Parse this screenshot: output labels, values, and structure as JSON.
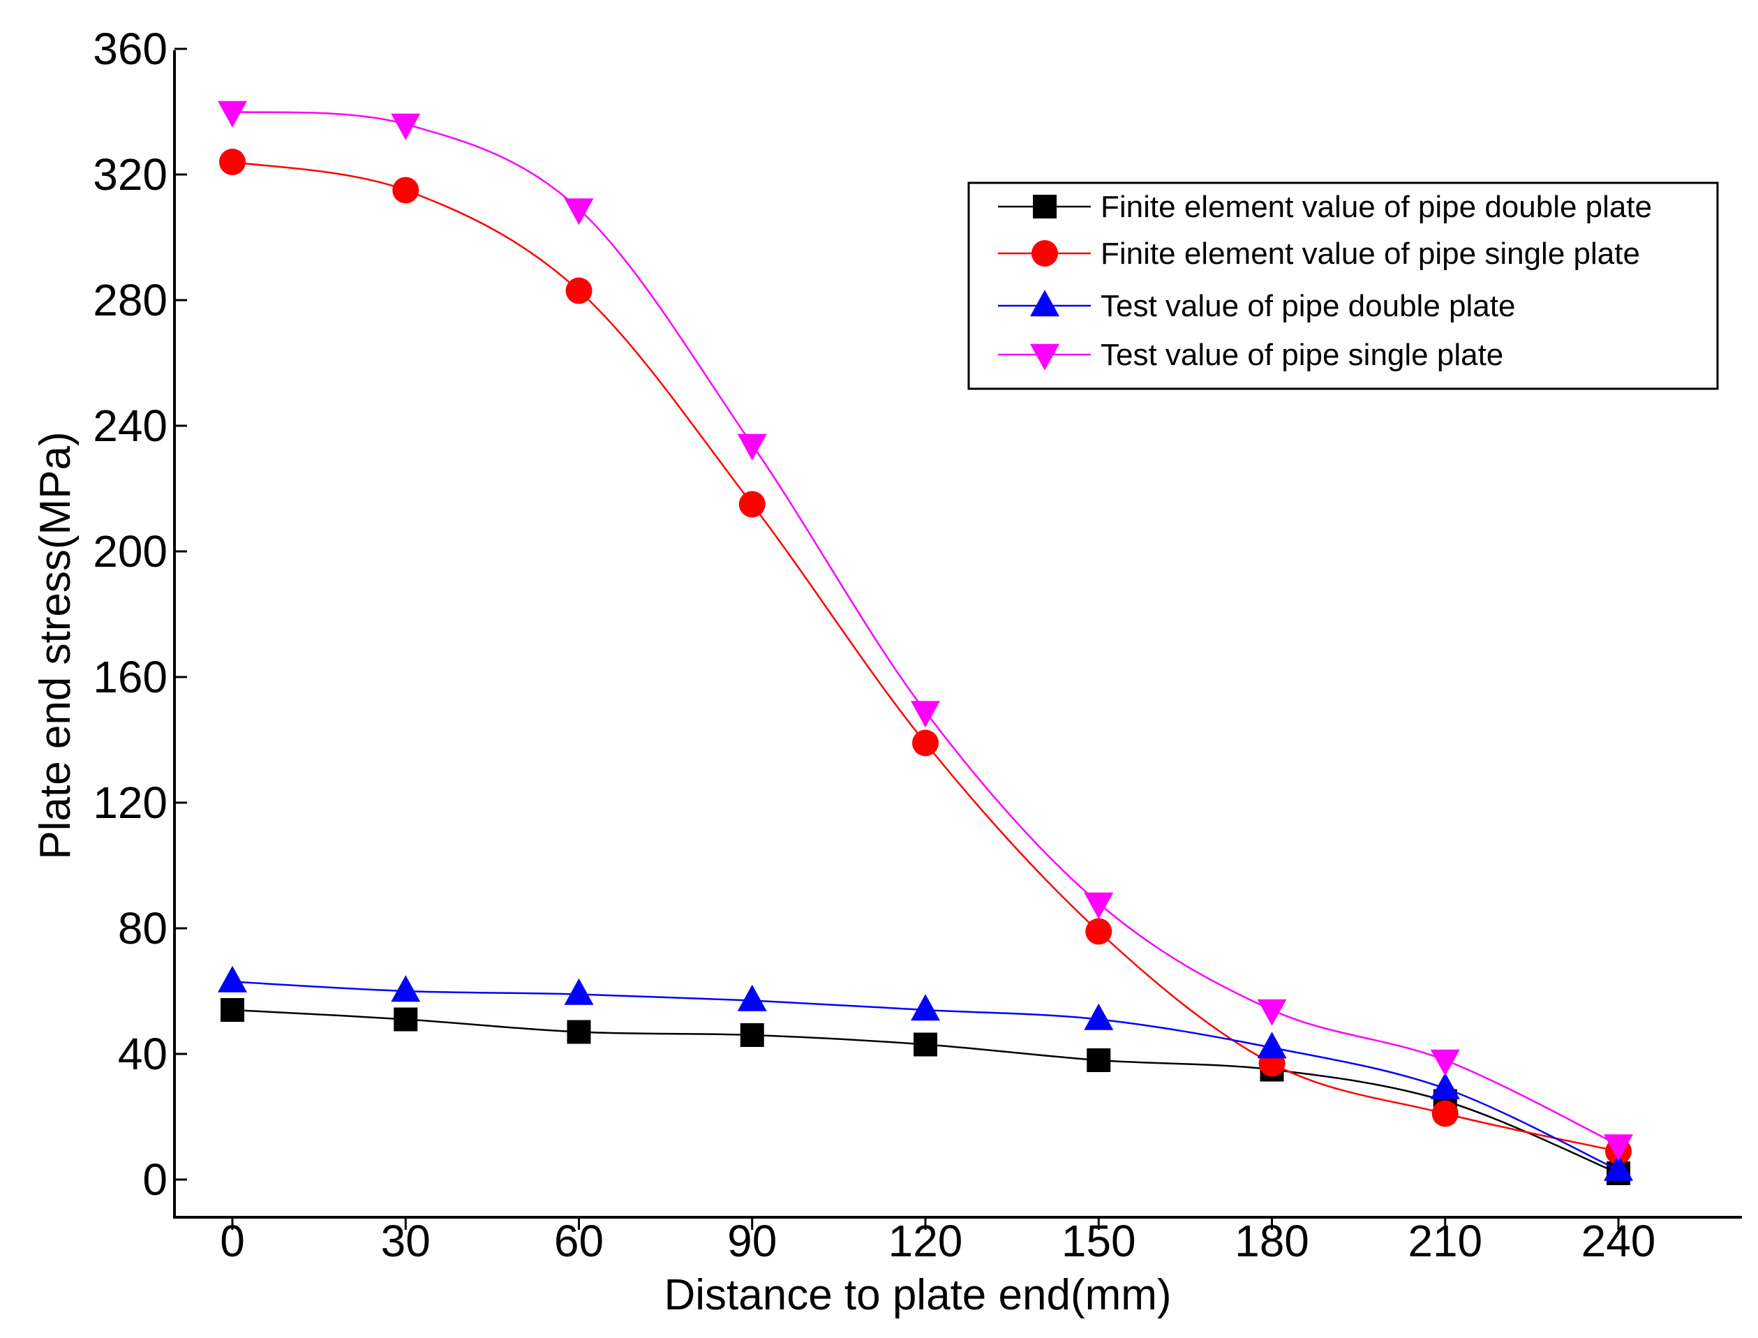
{
  "chart_data": {
    "type": "line",
    "title": "",
    "xlabel": "Distance to plate end(mm)",
    "ylabel": "Plate end stress(MPa)",
    "x": [
      0,
      30,
      60,
      90,
      120,
      150,
      180,
      210,
      240
    ],
    "x_ticks": [
      "0",
      "30",
      "60",
      "90",
      "120",
      "150",
      "180",
      "210",
      "240"
    ],
    "y_ticks": [
      "0",
      "40",
      "80",
      "120",
      "160",
      "200",
      "240",
      "280",
      "320",
      "360"
    ],
    "xlim": [
      -10,
      260
    ],
    "ylim": [
      -10,
      360
    ],
    "grid": false,
    "legend_position": "top-right",
    "series": [
      {
        "name": "Finite element value of pipe double plate",
        "marker": "square",
        "color": "#000000",
        "values": [
          54,
          51,
          47,
          46,
          43,
          38,
          35,
          25,
          2
        ]
      },
      {
        "name": "Finite element value of pipe single plate",
        "marker": "circle",
        "color": "#ff0000",
        "values": [
          324,
          315,
          283,
          215,
          139,
          79,
          37,
          21,
          9
        ]
      },
      {
        "name": "Test value of pipe double plate",
        "marker": "triangle-up",
        "color": "#0000ff",
        "values": [
          63,
          60,
          59,
          57,
          54,
          51,
          42,
          29,
          3
        ]
      },
      {
        "name": "Test value of pipe single plate",
        "marker": "triangle-down",
        "color": "#ff00ff",
        "values": [
          340,
          336,
          309,
          234,
          149,
          88,
          54,
          38,
          11
        ]
      }
    ]
  }
}
